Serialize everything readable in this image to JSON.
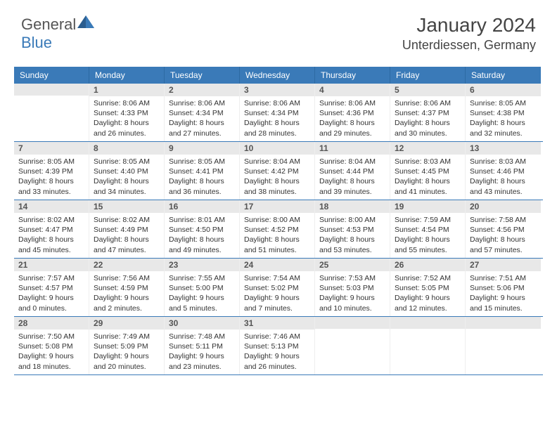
{
  "brand": {
    "name_part1": "General",
    "name_part2": "Blue"
  },
  "title": "January 2024",
  "location": "Unterdiessen, Germany",
  "colors": {
    "header_bg": "#3a7ab8",
    "header_text": "#ffffff",
    "daynum_bg": "#e8e8e8",
    "border": "#3a7ab8",
    "text": "#333333"
  },
  "day_names": [
    "Sunday",
    "Monday",
    "Tuesday",
    "Wednesday",
    "Thursday",
    "Friday",
    "Saturday"
  ],
  "weeks": [
    [
      {
        "n": "",
        "sunrise": "",
        "sunset": "",
        "daylight": ""
      },
      {
        "n": "1",
        "sunrise": "Sunrise: 8:06 AM",
        "sunset": "Sunset: 4:33 PM",
        "daylight": "Daylight: 8 hours and 26 minutes."
      },
      {
        "n": "2",
        "sunrise": "Sunrise: 8:06 AM",
        "sunset": "Sunset: 4:34 PM",
        "daylight": "Daylight: 8 hours and 27 minutes."
      },
      {
        "n": "3",
        "sunrise": "Sunrise: 8:06 AM",
        "sunset": "Sunset: 4:34 PM",
        "daylight": "Daylight: 8 hours and 28 minutes."
      },
      {
        "n": "4",
        "sunrise": "Sunrise: 8:06 AM",
        "sunset": "Sunset: 4:36 PM",
        "daylight": "Daylight: 8 hours and 29 minutes."
      },
      {
        "n": "5",
        "sunrise": "Sunrise: 8:06 AM",
        "sunset": "Sunset: 4:37 PM",
        "daylight": "Daylight: 8 hours and 30 minutes."
      },
      {
        "n": "6",
        "sunrise": "Sunrise: 8:05 AM",
        "sunset": "Sunset: 4:38 PM",
        "daylight": "Daylight: 8 hours and 32 minutes."
      }
    ],
    [
      {
        "n": "7",
        "sunrise": "Sunrise: 8:05 AM",
        "sunset": "Sunset: 4:39 PM",
        "daylight": "Daylight: 8 hours and 33 minutes."
      },
      {
        "n": "8",
        "sunrise": "Sunrise: 8:05 AM",
        "sunset": "Sunset: 4:40 PM",
        "daylight": "Daylight: 8 hours and 34 minutes."
      },
      {
        "n": "9",
        "sunrise": "Sunrise: 8:05 AM",
        "sunset": "Sunset: 4:41 PM",
        "daylight": "Daylight: 8 hours and 36 minutes."
      },
      {
        "n": "10",
        "sunrise": "Sunrise: 8:04 AM",
        "sunset": "Sunset: 4:42 PM",
        "daylight": "Daylight: 8 hours and 38 minutes."
      },
      {
        "n": "11",
        "sunrise": "Sunrise: 8:04 AM",
        "sunset": "Sunset: 4:44 PM",
        "daylight": "Daylight: 8 hours and 39 minutes."
      },
      {
        "n": "12",
        "sunrise": "Sunrise: 8:03 AM",
        "sunset": "Sunset: 4:45 PM",
        "daylight": "Daylight: 8 hours and 41 minutes."
      },
      {
        "n": "13",
        "sunrise": "Sunrise: 8:03 AM",
        "sunset": "Sunset: 4:46 PM",
        "daylight": "Daylight: 8 hours and 43 minutes."
      }
    ],
    [
      {
        "n": "14",
        "sunrise": "Sunrise: 8:02 AM",
        "sunset": "Sunset: 4:47 PM",
        "daylight": "Daylight: 8 hours and 45 minutes."
      },
      {
        "n": "15",
        "sunrise": "Sunrise: 8:02 AM",
        "sunset": "Sunset: 4:49 PM",
        "daylight": "Daylight: 8 hours and 47 minutes."
      },
      {
        "n": "16",
        "sunrise": "Sunrise: 8:01 AM",
        "sunset": "Sunset: 4:50 PM",
        "daylight": "Daylight: 8 hours and 49 minutes."
      },
      {
        "n": "17",
        "sunrise": "Sunrise: 8:00 AM",
        "sunset": "Sunset: 4:52 PM",
        "daylight": "Daylight: 8 hours and 51 minutes."
      },
      {
        "n": "18",
        "sunrise": "Sunrise: 8:00 AM",
        "sunset": "Sunset: 4:53 PM",
        "daylight": "Daylight: 8 hours and 53 minutes."
      },
      {
        "n": "19",
        "sunrise": "Sunrise: 7:59 AM",
        "sunset": "Sunset: 4:54 PM",
        "daylight": "Daylight: 8 hours and 55 minutes."
      },
      {
        "n": "20",
        "sunrise": "Sunrise: 7:58 AM",
        "sunset": "Sunset: 4:56 PM",
        "daylight": "Daylight: 8 hours and 57 minutes."
      }
    ],
    [
      {
        "n": "21",
        "sunrise": "Sunrise: 7:57 AM",
        "sunset": "Sunset: 4:57 PM",
        "daylight": "Daylight: 9 hours and 0 minutes."
      },
      {
        "n": "22",
        "sunrise": "Sunrise: 7:56 AM",
        "sunset": "Sunset: 4:59 PM",
        "daylight": "Daylight: 9 hours and 2 minutes."
      },
      {
        "n": "23",
        "sunrise": "Sunrise: 7:55 AM",
        "sunset": "Sunset: 5:00 PM",
        "daylight": "Daylight: 9 hours and 5 minutes."
      },
      {
        "n": "24",
        "sunrise": "Sunrise: 7:54 AM",
        "sunset": "Sunset: 5:02 PM",
        "daylight": "Daylight: 9 hours and 7 minutes."
      },
      {
        "n": "25",
        "sunrise": "Sunrise: 7:53 AM",
        "sunset": "Sunset: 5:03 PM",
        "daylight": "Daylight: 9 hours and 10 minutes."
      },
      {
        "n": "26",
        "sunrise": "Sunrise: 7:52 AM",
        "sunset": "Sunset: 5:05 PM",
        "daylight": "Daylight: 9 hours and 12 minutes."
      },
      {
        "n": "27",
        "sunrise": "Sunrise: 7:51 AM",
        "sunset": "Sunset: 5:06 PM",
        "daylight": "Daylight: 9 hours and 15 minutes."
      }
    ],
    [
      {
        "n": "28",
        "sunrise": "Sunrise: 7:50 AM",
        "sunset": "Sunset: 5:08 PM",
        "daylight": "Daylight: 9 hours and 18 minutes."
      },
      {
        "n": "29",
        "sunrise": "Sunrise: 7:49 AM",
        "sunset": "Sunset: 5:09 PM",
        "daylight": "Daylight: 9 hours and 20 minutes."
      },
      {
        "n": "30",
        "sunrise": "Sunrise: 7:48 AM",
        "sunset": "Sunset: 5:11 PM",
        "daylight": "Daylight: 9 hours and 23 minutes."
      },
      {
        "n": "31",
        "sunrise": "Sunrise: 7:46 AM",
        "sunset": "Sunset: 5:13 PM",
        "daylight": "Daylight: 9 hours and 26 minutes."
      },
      {
        "n": "",
        "sunrise": "",
        "sunset": "",
        "daylight": ""
      },
      {
        "n": "",
        "sunrise": "",
        "sunset": "",
        "daylight": ""
      },
      {
        "n": "",
        "sunrise": "",
        "sunset": "",
        "daylight": ""
      }
    ]
  ]
}
